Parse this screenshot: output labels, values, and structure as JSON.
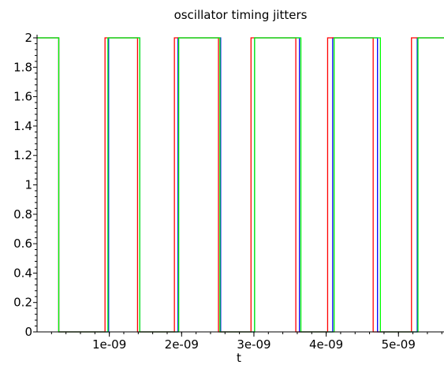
{
  "chart_data": {
    "type": "line",
    "title": "oscillator timing jitters",
    "xlabel": "t",
    "ylabel": "",
    "xlim": [
      0,
      5.63e-09
    ],
    "ylim": [
      0,
      2
    ],
    "x_ticks": [
      {
        "value": 1e-09,
        "label": "1e-09"
      },
      {
        "value": 2e-09,
        "label": "2e-09"
      },
      {
        "value": 3e-09,
        "label": "3e-09"
      },
      {
        "value": 4e-09,
        "label": "4e-09"
      },
      {
        "value": 5e-09,
        "label": "5e-09"
      }
    ],
    "y_ticks": [
      {
        "value": 0,
        "label": "0"
      },
      {
        "value": 0.2,
        "label": "0.2"
      },
      {
        "value": 0.4,
        "label": "0.4"
      },
      {
        "value": 0.6,
        "label": "0.6"
      },
      {
        "value": 0.8,
        "label": "0.8"
      },
      {
        "value": 1,
        "label": "1"
      },
      {
        "value": 1.2,
        "label": "1.2"
      },
      {
        "value": 1.4,
        "label": "1.4"
      },
      {
        "value": 1.6,
        "label": "1.6"
      },
      {
        "value": 1.8,
        "label": "1.8"
      },
      {
        "value": 2,
        "label": "2"
      }
    ],
    "grid": false,
    "legend": "none",
    "series": [
      {
        "color": "#0000ff",
        "high_intervals": [
          [
            0,
            3e-10
          ],
          [
            9.9e-10,
            1.42e-09
          ],
          [
            1.95e-09,
            2.54e-09
          ],
          [
            3.01e-09,
            3.63e-09
          ],
          [
            4.09e-09,
            4.71e-09
          ],
          [
            5.26e-09,
            5.63e-09
          ]
        ]
      },
      {
        "color": "#ff0000",
        "high_intervals": [
          [
            0,
            3e-10
          ],
          [
            9.4e-10,
            1.39e-09
          ],
          [
            1.9e-09,
            2.51e-09
          ],
          [
            2.96e-09,
            3.58e-09
          ],
          [
            4.02e-09,
            4.65e-09
          ],
          [
            5.18e-09,
            5.63e-09
          ]
        ]
      },
      {
        "color": "#00ff00",
        "high_intervals": [
          [
            0,
            3e-10
          ],
          [
            9.8e-10,
            1.42e-09
          ],
          [
            1.96e-09,
            2.53e-09
          ],
          [
            3.01e-09,
            3.65e-09
          ],
          [
            4.11e-09,
            4.75e-09
          ],
          [
            5.27e-09,
            5.63e-09
          ]
        ]
      }
    ]
  }
}
